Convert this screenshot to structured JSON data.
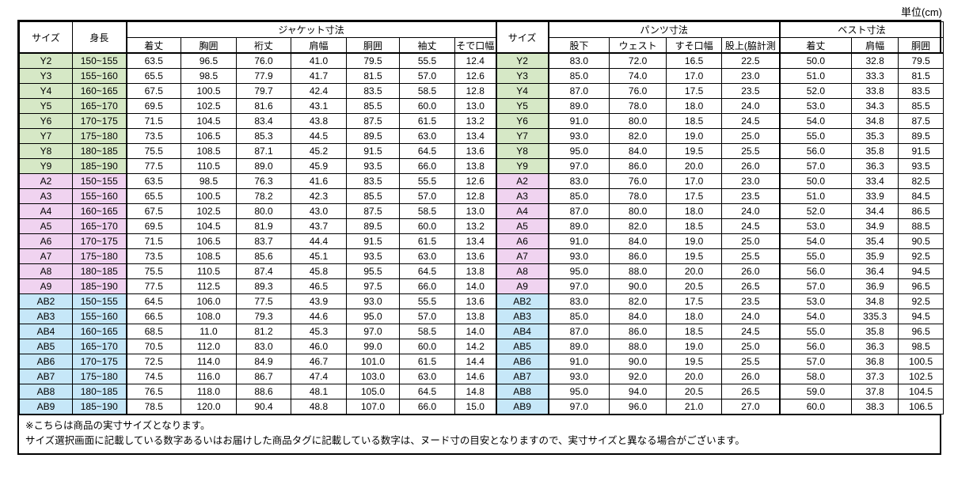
{
  "unit_label": "単位(cm)",
  "table": {
    "header": {
      "size": "サイズ",
      "height": "身長",
      "jacket_group": "ジャケット寸法",
      "jacket_cols": [
        "着丈",
        "胸囲",
        "裄丈",
        "肩幅",
        "胴囲",
        "袖丈",
        "そで口幅"
      ],
      "size2": "サイズ",
      "pants_group": "パンツ寸法",
      "pants_cols": [
        "股下",
        "ウェスト",
        "すそ口幅",
        "股上(脇計測"
      ],
      "vest_group": "ベスト寸法",
      "vest_cols": [
        "着丈",
        "肩幅",
        "胴囲"
      ]
    },
    "groups": [
      {
        "name": "Y",
        "color": "#d6e8c6",
        "rows": [
          {
            "size": "Y2",
            "height": "150~155",
            "jacket": [
              "63.5",
              "96.5",
              "76.0",
              "41.0",
              "79.5",
              "55.5",
              "12.4"
            ],
            "pants": [
              "83.0",
              "72.0",
              "16.5",
              "22.5"
            ],
            "vest": [
              "50.0",
              "32.8",
              "79.5"
            ]
          },
          {
            "size": "Y3",
            "height": "155~160",
            "jacket": [
              "65.5",
              "98.5",
              "77.9",
              "41.7",
              "81.5",
              "57.0",
              "12.6"
            ],
            "pants": [
              "85.0",
              "74.0",
              "17.0",
              "23.0"
            ],
            "vest": [
              "51.0",
              "33.3",
              "81.5"
            ]
          },
          {
            "size": "Y4",
            "height": "160~165",
            "jacket": [
              "67.5",
              "100.5",
              "79.7",
              "42.4",
              "83.5",
              "58.5",
              "12.8"
            ],
            "pants": [
              "87.0",
              "76.0",
              "17.5",
              "23.5"
            ],
            "vest": [
              "52.0",
              "33.8",
              "83.5"
            ]
          },
          {
            "size": "Y5",
            "height": "165~170",
            "jacket": [
              "69.5",
              "102.5",
              "81.6",
              "43.1",
              "85.5",
              "60.0",
              "13.0"
            ],
            "pants": [
              "89.0",
              "78.0",
              "18.0",
              "24.0"
            ],
            "vest": [
              "53.0",
              "34.3",
              "85.5"
            ]
          },
          {
            "size": "Y6",
            "height": "170~175",
            "jacket": [
              "71.5",
              "104.5",
              "83.4",
              "43.8",
              "87.5",
              "61.5",
              "13.2"
            ],
            "pants": [
              "91.0",
              "80.0",
              "18.5",
              "24.5"
            ],
            "vest": [
              "54.0",
              "34.8",
              "87.5"
            ]
          },
          {
            "size": "Y7",
            "height": "175~180",
            "jacket": [
              "73.5",
              "106.5",
              "85.3",
              "44.5",
              "89.5",
              "63.0",
              "13.4"
            ],
            "pants": [
              "93.0",
              "82.0",
              "19.0",
              "25.0"
            ],
            "vest": [
              "55.0",
              "35.3",
              "89.5"
            ]
          },
          {
            "size": "Y8",
            "height": "180~185",
            "jacket": [
              "75.5",
              "108.5",
              "87.1",
              "45.2",
              "91.5",
              "64.5",
              "13.6"
            ],
            "pants": [
              "95.0",
              "84.0",
              "19.5",
              "25.5"
            ],
            "vest": [
              "56.0",
              "35.8",
              "91.5"
            ]
          },
          {
            "size": "Y9",
            "height": "185~190",
            "jacket": [
              "77.5",
              "110.5",
              "89.0",
              "45.9",
              "93.5",
              "66.0",
              "13.8"
            ],
            "pants": [
              "97.0",
              "86.0",
              "20.0",
              "26.0"
            ],
            "vest": [
              "57.0",
              "36.3",
              "93.5"
            ]
          }
        ]
      },
      {
        "name": "A",
        "color": "#f0d3f0",
        "rows": [
          {
            "size": "A2",
            "height": "150~155",
            "jacket": [
              "63.5",
              "98.5",
              "76.3",
              "41.6",
              "83.5",
              "55.5",
              "12.6"
            ],
            "pants": [
              "83.0",
              "76.0",
              "17.0",
              "23.0"
            ],
            "vest": [
              "50.0",
              "33.4",
              "82.5"
            ]
          },
          {
            "size": "A3",
            "height": "155~160",
            "jacket": [
              "65.5",
              "100.5",
              "78.2",
              "42.3",
              "85.5",
              "57.0",
              "12.8"
            ],
            "pants": [
              "85.0",
              "78.0",
              "17.5",
              "23.5"
            ],
            "vest": [
              "51.0",
              "33.9",
              "84.5"
            ]
          },
          {
            "size": "A4",
            "height": "160~165",
            "jacket": [
              "67.5",
              "102.5",
              "80.0",
              "43.0",
              "87.5",
              "58.5",
              "13.0"
            ],
            "pants": [
              "87.0",
              "80.0",
              "18.0",
              "24.0"
            ],
            "vest": [
              "52.0",
              "34.4",
              "86.5"
            ]
          },
          {
            "size": "A5",
            "height": "165~170",
            "jacket": [
              "69.5",
              "104.5",
              "81.9",
              "43.7",
              "89.5",
              "60.0",
              "13.2"
            ],
            "pants": [
              "89.0",
              "82.0",
              "18.5",
              "24.5"
            ],
            "vest": [
              "53.0",
              "34.9",
              "88.5"
            ]
          },
          {
            "size": "A6",
            "height": "170~175",
            "jacket": [
              "71.5",
              "106.5",
              "83.7",
              "44.4",
              "91.5",
              "61.5",
              "13.4"
            ],
            "pants": [
              "91.0",
              "84.0",
              "19.0",
              "25.0"
            ],
            "vest": [
              "54.0",
              "35.4",
              "90.5"
            ]
          },
          {
            "size": "A7",
            "height": "175~180",
            "jacket": [
              "73.5",
              "108.5",
              "85.6",
              "45.1",
              "93.5",
              "63.0",
              "13.6"
            ],
            "pants": [
              "93.0",
              "86.0",
              "19.5",
              "25.5"
            ],
            "vest": [
              "55.0",
              "35.9",
              "92.5"
            ]
          },
          {
            "size": "A8",
            "height": "180~185",
            "jacket": [
              "75.5",
              "110.5",
              "87.4",
              "45.8",
              "95.5",
              "64.5",
              "13.8"
            ],
            "pants": [
              "95.0",
              "88.0",
              "20.0",
              "26.0"
            ],
            "vest": [
              "56.0",
              "36.4",
              "94.5"
            ]
          },
          {
            "size": "A9",
            "height": "185~190",
            "jacket": [
              "77.5",
              "112.5",
              "89.3",
              "46.5",
              "97.5",
              "66.0",
              "14.0"
            ],
            "pants": [
              "97.0",
              "90.0",
              "20.5",
              "26.5"
            ],
            "vest": [
              "57.0",
              "36.9",
              "96.5"
            ]
          }
        ]
      },
      {
        "name": "AB",
        "color": "#c6e7f8",
        "rows": [
          {
            "size": "AB2",
            "height": "150~155",
            "jacket": [
              "64.5",
              "106.0",
              "77.5",
              "43.9",
              "93.0",
              "55.5",
              "13.6"
            ],
            "pants": [
              "83.0",
              "82.0",
              "17.5",
              "23.5"
            ],
            "vest": [
              "53.0",
              "34.8",
              "92.5"
            ]
          },
          {
            "size": "AB3",
            "height": "155~160",
            "jacket": [
              "66.5",
              "108.0",
              "79.3",
              "44.6",
              "95.0",
              "57.0",
              "13.8"
            ],
            "pants": [
              "85.0",
              "84.0",
              "18.0",
              "24.0"
            ],
            "vest": [
              "54.0",
              "335.3",
              "94.5"
            ]
          },
          {
            "size": "AB4",
            "height": "160~165",
            "jacket": [
              "68.5",
              "11.0",
              "81.2",
              "45.3",
              "97.0",
              "58.5",
              "14.0"
            ],
            "pants": [
              "87.0",
              "86.0",
              "18.5",
              "24.5"
            ],
            "vest": [
              "55.0",
              "35.8",
              "96.5"
            ]
          },
          {
            "size": "AB5",
            "height": "165~170",
            "jacket": [
              "70.5",
              "112.0",
              "83.0",
              "46.0",
              "99.0",
              "60.0",
              "14.2"
            ],
            "pants": [
              "89.0",
              "88.0",
              "19.0",
              "25.0"
            ],
            "vest": [
              "56.0",
              "36.3",
              "98.5"
            ]
          },
          {
            "size": "AB6",
            "height": "170~175",
            "jacket": [
              "72.5",
              "114.0",
              "84.9",
              "46.7",
              "101.0",
              "61.5",
              "14.4"
            ],
            "pants": [
              "91.0",
              "90.0",
              "19.5",
              "25.5"
            ],
            "vest": [
              "57.0",
              "36.8",
              "100.5"
            ]
          },
          {
            "size": "AB7",
            "height": "175~180",
            "jacket": [
              "74.5",
              "116.0",
              "86.7",
              "47.4",
              "103.0",
              "63.0",
              "14.6"
            ],
            "pants": [
              "93.0",
              "92.0",
              "20.0",
              "26.0"
            ],
            "vest": [
              "58.0",
              "37.3",
              "102.5"
            ]
          },
          {
            "size": "AB8",
            "height": "180~185",
            "jacket": [
              "76.5",
              "118.0",
              "88.6",
              "48.1",
              "105.0",
              "64.5",
              "14.8"
            ],
            "pants": [
              "95.0",
              "94.0",
              "20.5",
              "26.5"
            ],
            "vest": [
              "59.0",
              "37.8",
              "104.5"
            ]
          },
          {
            "size": "AB9",
            "height": "185~190",
            "jacket": [
              "78.5",
              "120.0",
              "90.4",
              "48.8",
              "107.0",
              "66.0",
              "15.0"
            ],
            "pants": [
              "97.0",
              "96.0",
              "21.0",
              "27.0"
            ],
            "vest": [
              "60.0",
              "38.3",
              "106.5"
            ]
          }
        ]
      }
    ]
  },
  "notes": [
    "※こちらは商品の実寸サイズとなります。",
    "サイズ選択画面に記載している数字あるいはお届けした商品タグに記載している数字は、ヌード寸の目安となりますので、実寸サイズと異なる場合がございます。"
  ]
}
